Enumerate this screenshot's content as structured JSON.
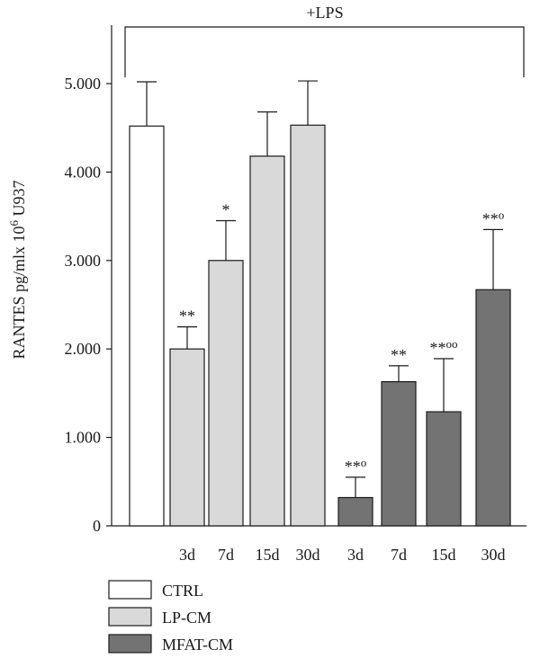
{
  "chart_data": {
    "type": "bar",
    "ylabel_main": "RANTES pg/mlx 10",
    "ylabel_sup": "6",
    "ylabel_tail": " U937",
    "ylim": [
      0,
      5500
    ],
    "yticks": [
      {
        "value": 0,
        "label": "0"
      },
      {
        "value": 1000,
        "label": "1.000"
      },
      {
        "value": 2000,
        "label": "2.000"
      },
      {
        "value": 3000,
        "label": "3.000"
      },
      {
        "value": 4000,
        "label": "4.000"
      },
      {
        "value": 5000,
        "label": "5.000"
      }
    ],
    "bracket_label": "+LPS",
    "bars": [
      {
        "group": "CTRL",
        "label": "",
        "value": 4520,
        "error": 500,
        "annotation": ""
      },
      {
        "group": "LP-CM",
        "label": "3d",
        "value": 2000,
        "error": 250,
        "annotation": "**"
      },
      {
        "group": "LP-CM",
        "label": "7d",
        "value": 3000,
        "error": 450,
        "annotation": "*"
      },
      {
        "group": "LP-CM",
        "label": "15d",
        "value": 4180,
        "error": 500,
        "annotation": ""
      },
      {
        "group": "LP-CM",
        "label": "30d",
        "value": 4530,
        "error": 500,
        "annotation": ""
      },
      {
        "group": "MFAT-CM",
        "label": "3d",
        "value": 320,
        "error": 230,
        "annotation": "**o"
      },
      {
        "group": "MFAT-CM",
        "label": "7d",
        "value": 1630,
        "error": 180,
        "annotation": "**"
      },
      {
        "group": "MFAT-CM",
        "label": "15d",
        "value": 1290,
        "error": 600,
        "annotation": "**oo"
      },
      {
        "group": "MFAT-CM",
        "label": "30d",
        "value": 2670,
        "error": 680,
        "annotation": "**o"
      }
    ],
    "legend": [
      {
        "name": "CTRL",
        "color": "#ffffff"
      },
      {
        "name": "LP-CM",
        "color": "#d9d9d9"
      },
      {
        "name": "MFAT-CM",
        "color": "#737373"
      }
    ]
  }
}
